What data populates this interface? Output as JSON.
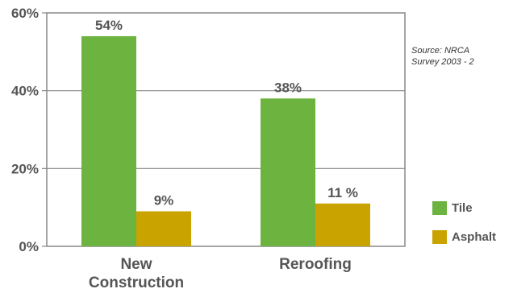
{
  "source_note": {
    "line1": "Source: NRCA",
    "line2": "Survey 2003 - 2"
  },
  "chart_data": {
    "type": "bar",
    "categories": [
      "New Construction",
      "Reroofing"
    ],
    "category_lines": [
      [
        "New",
        "Construction"
      ],
      [
        "Reroofing"
      ]
    ],
    "series": [
      {
        "name": "Tile",
        "color": "#6db33f",
        "values": [
          54,
          38
        ],
        "labels": [
          "54%",
          "38%"
        ]
      },
      {
        "name": "Asphalt",
        "color": "#c9a400",
        "values": [
          9,
          11
        ],
        "labels": [
          "9%",
          "11 %"
        ]
      }
    ],
    "yticks": [
      "0%",
      "20%",
      "40%",
      "60%"
    ],
    "ytick_values": [
      0,
      20,
      40,
      60
    ],
    "ylim": [
      0,
      60
    ],
    "grid": true,
    "legend": "bottom-right"
  }
}
